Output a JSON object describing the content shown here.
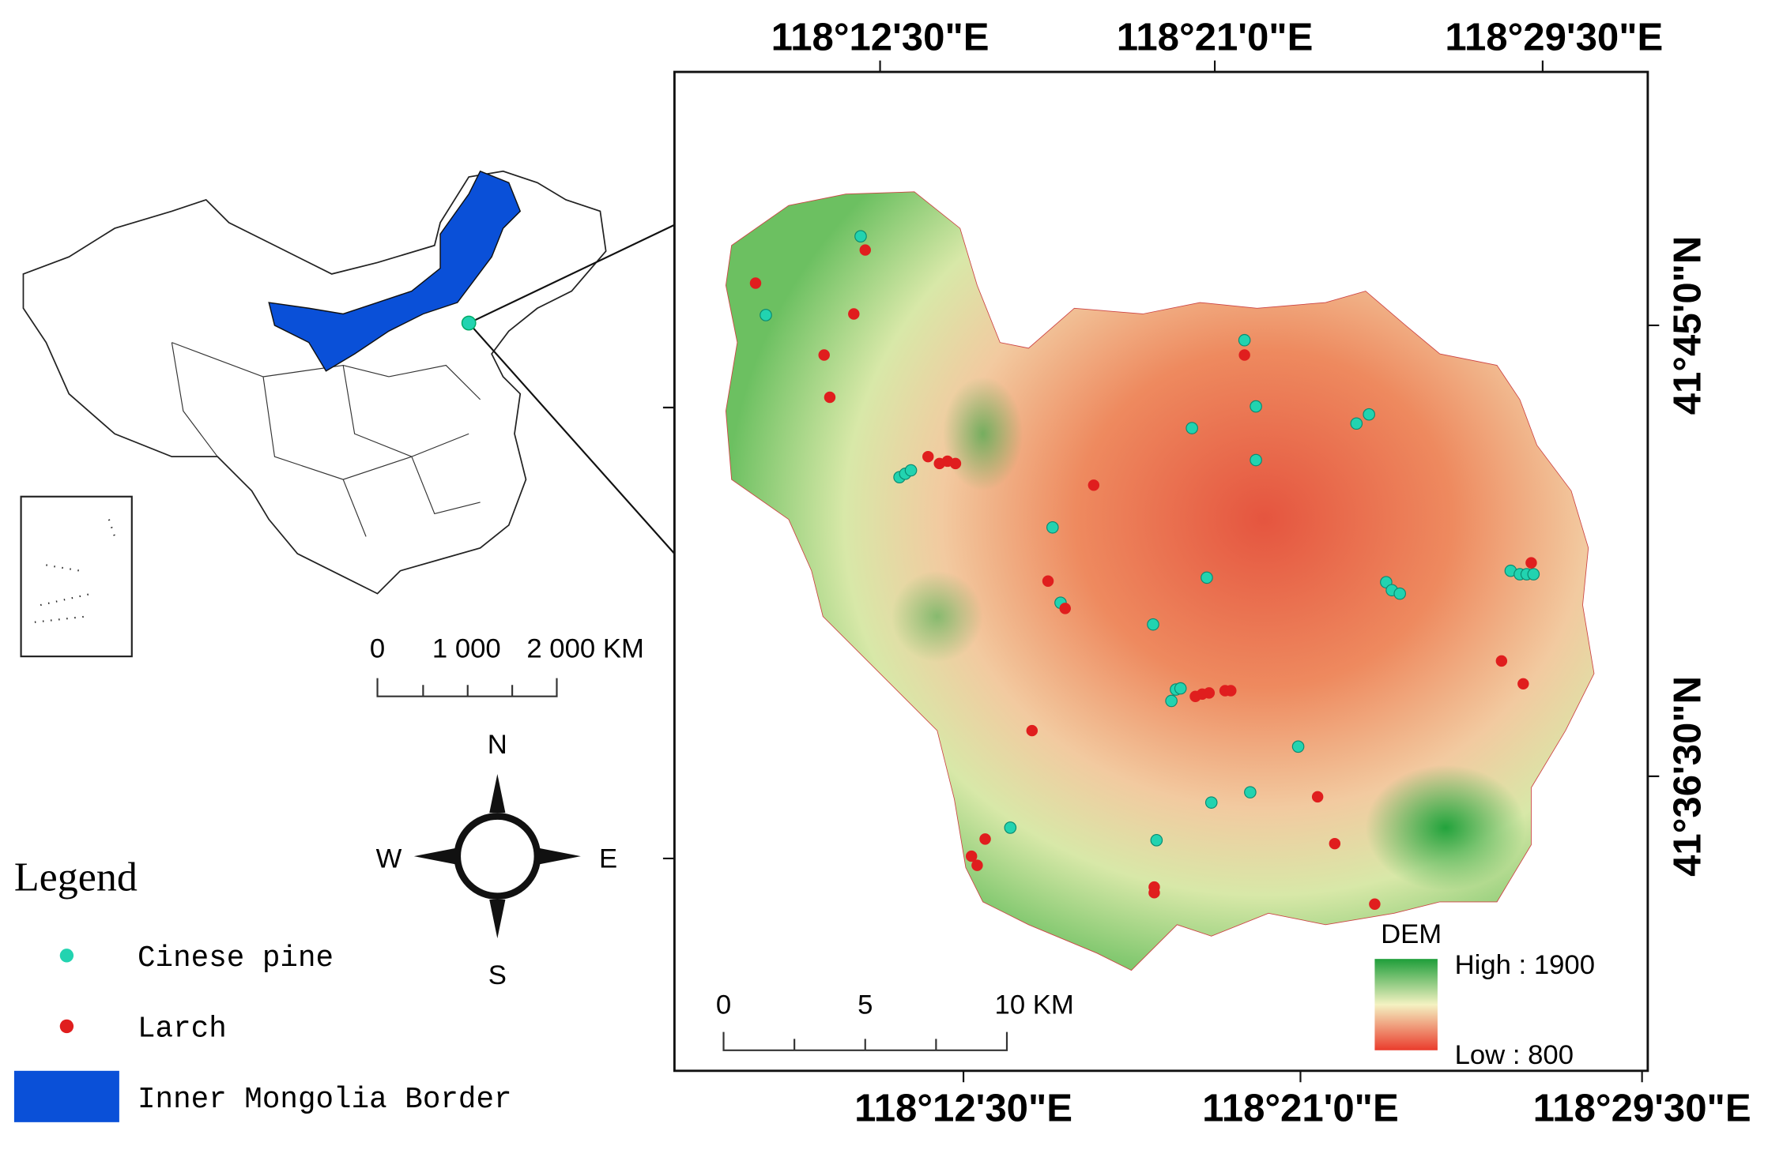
{
  "overview_map": {
    "scale_bar": {
      "labels": [
        "0",
        "1 000",
        "2 000 KM"
      ]
    },
    "compass": {
      "north": "N",
      "south": "S",
      "west": "W",
      "east": "E"
    }
  },
  "legend": {
    "title": "Legend",
    "items": [
      {
        "label": "Cinese pine",
        "color": "#22d3b0"
      },
      {
        "label": "Larch",
        "color": "#e01e1e"
      },
      {
        "label": "Inner Mongolia Border",
        "color": "#0a50d8"
      }
    ]
  },
  "study_area_map": {
    "top_labels": [
      "118°12'30\"E",
      "118°21'0\"E",
      "118°29'30\"E"
    ],
    "bottom_labels": [
      "118°12'30\"E",
      "118°21'0\"E",
      "118°29'30\"E"
    ],
    "right_labels": [
      "41°45'0\"N",
      "41°36'30\"N"
    ],
    "scale_bar": {
      "labels": [
        "0",
        "5",
        "10 KM"
      ]
    },
    "dem_legend": {
      "title": "DEM",
      "high": "High : 1900",
      "low": "Low : 800"
    }
  }
}
